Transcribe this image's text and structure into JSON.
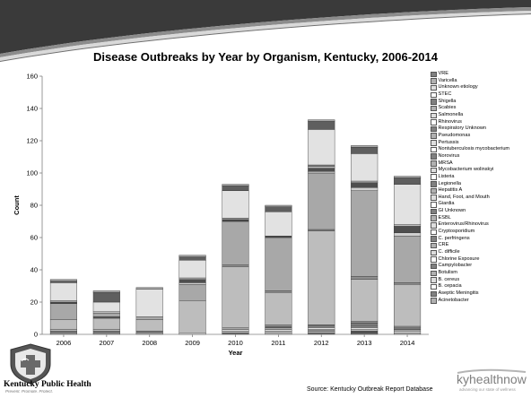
{
  "chart_data": {
    "type": "bar",
    "stacked": true,
    "title": "Disease Outbreaks by Year by Organism, Kentucky, 2006-2014",
    "xlabel": "Year",
    "ylabel": "Count",
    "ylim": [
      0,
      160
    ],
    "yticks": [
      0,
      20,
      40,
      60,
      80,
      100,
      120,
      140,
      160
    ],
    "categories": [
      "2006",
      "2007",
      "2008",
      "2009",
      "2010",
      "2011",
      "2012",
      "2013",
      "2014"
    ],
    "grid": false,
    "legend_position": "right",
    "series": [
      {
        "name": "Acinetobacter",
        "values": [
          0,
          0,
          0,
          0,
          0,
          0,
          0,
          0,
          0
        ]
      },
      {
        "name": "Aseptic Meningitis",
        "values": [
          0,
          0,
          0,
          0,
          0,
          0,
          0,
          0,
          0
        ]
      },
      {
        "name": "B. cepacia",
        "values": [
          0,
          0,
          0,
          0,
          1,
          0,
          1,
          1,
          0
        ]
      },
      {
        "name": "B. cereus",
        "values": [
          0,
          0,
          0,
          0,
          0,
          1,
          0,
          0,
          0
        ]
      },
      {
        "name": "Botulism",
        "values": [
          0,
          0,
          0,
          0,
          0,
          0,
          0,
          1,
          0
        ]
      },
      {
        "name": "Campylobacter",
        "values": [
          0,
          0,
          1,
          0,
          1,
          1,
          1,
          1,
          1
        ]
      },
      {
        "name": "Chlorine Exposure",
        "values": [
          0,
          0,
          0,
          0,
          0,
          0,
          1,
          0,
          0
        ]
      },
      {
        "name": "C. difficile",
        "values": [
          0,
          0,
          0,
          0,
          1,
          1,
          1,
          1,
          1
        ]
      },
      {
        "name": "CRE",
        "values": [
          0,
          0,
          0,
          0,
          0,
          0,
          0,
          0,
          0
        ]
      },
      {
        "name": "C. perfringens",
        "values": [
          1,
          1,
          0,
          0,
          1,
          1,
          1,
          1,
          1
        ]
      },
      {
        "name": "Cryptosporidium",
        "values": [
          1,
          1,
          1,
          0,
          0,
          1,
          1,
          2,
          1
        ]
      },
      {
        "name": "Enterovirus/Rhinovirus",
        "values": [
          0,
          0,
          0,
          0,
          0,
          0,
          0,
          0,
          0
        ]
      },
      {
        "name": "ESBL",
        "values": [
          0,
          0,
          0,
          0,
          0,
          0,
          0,
          0,
          0
        ]
      },
      {
        "name": "GI Unknown",
        "values": [
          1,
          1,
          0,
          0,
          0,
          0,
          0,
          0,
          0
        ]
      },
      {
        "name": "Giardia",
        "values": [
          0,
          0,
          0,
          0,
          0,
          0,
          0,
          1,
          0
        ]
      },
      {
        "name": "Hand, Foot, and Mouth",
        "values": [
          0,
          0,
          0,
          1,
          0,
          0,
          0,
          0,
          0
        ]
      },
      {
        "name": "Hepatitis A",
        "values": [
          0,
          0,
          0,
          0,
          0,
          0,
          0,
          0,
          0
        ]
      },
      {
        "name": "Legionella",
        "values": [
          0,
          0,
          0,
          0,
          0,
          1,
          0,
          0,
          1
        ]
      },
      {
        "name": "Listeria",
        "values": [
          0,
          0,
          0,
          0,
          0,
          0,
          0,
          0,
          0
        ]
      },
      {
        "name": "Mycobacterium wolinskyi",
        "values": [
          0,
          0,
          0,
          0,
          0,
          0,
          0,
          0,
          0
        ]
      },
      {
        "name": "MRSA",
        "values": [
          0,
          0,
          0,
          0,
          0,
          0,
          0,
          0,
          0
        ]
      },
      {
        "name": "Norovirus",
        "values": [
          6,
          7,
          7,
          20,
          38,
          20,
          58,
          26,
          26
        ]
      },
      {
        "name": "Nontuberculosis mycobacterium",
        "values": [
          0,
          0,
          0,
          0,
          1,
          1,
          1,
          2,
          1
        ]
      },
      {
        "name": "Pertussis",
        "values": [
          0,
          0,
          0,
          0,
          0,
          0,
          0,
          0,
          0
        ]
      },
      {
        "name": "Pseudomonas",
        "values": [
          0,
          1,
          0,
          0,
          0,
          0,
          0,
          0,
          0
        ]
      },
      {
        "name": "Respiratory Unknown",
        "values": [
          10,
          2,
          2,
          10,
          27,
          33,
          35,
          53,
          29
        ]
      },
      {
        "name": "Rhinovirus",
        "values": [
          0,
          0,
          0,
          0,
          0,
          0,
          0,
          0,
          0
        ]
      },
      {
        "name": "Salmonella",
        "values": [
          0,
          0,
          0,
          1,
          0,
          0,
          1,
          2,
          2
        ]
      },
      {
        "name": "Scabies",
        "values": [
          1,
          0,
          0,
          2,
          1,
          1,
          2,
          3,
          4
        ]
      },
      {
        "name": "Shigella",
        "values": [
          1,
          1,
          0,
          1,
          0,
          0,
          1,
          1,
          1
        ]
      },
      {
        "name": "STEC",
        "values": [
          0,
          0,
          0,
          0,
          1,
          0,
          1,
          0,
          0
        ]
      },
      {
        "name": "Unknown etiology",
        "values": [
          11,
          6,
          17,
          11,
          17,
          15,
          22,
          17,
          25
        ]
      },
      {
        "name": "Varicella",
        "values": [
          1,
          6,
          0,
          2,
          3,
          3,
          5,
          4,
          4
        ]
      },
      {
        "name": "VRE",
        "values": [
          1,
          1,
          1,
          1,
          1,
          1,
          1,
          1,
          1
        ]
      }
    ]
  },
  "footer": {
    "org_name": "Kentucky Public Health",
    "org_tagline": "Prevent. Promote. Protect.",
    "source": "Source: Kentucky Outbreak Report Database",
    "partner_name": "kyhealthnow",
    "partner_tagline": "advancing our state of wellness"
  },
  "colors": {
    "banner_dark": "#3a3a3a",
    "banner_mid": "#8c8c8c",
    "banner_light": "#d9d9d9",
    "bar_palette": [
      "#5f5f5f",
      "#a8a8a8",
      "#7a7a7a",
      "#cfcfcf",
      "#4e4e4e",
      "#bdbdbd",
      "#8e8e8e",
      "#e2e2e2"
    ],
    "legend_palette": [
      "#808080",
      "#b0b0b0",
      "#dddddd",
      "#ffffff"
    ]
  }
}
